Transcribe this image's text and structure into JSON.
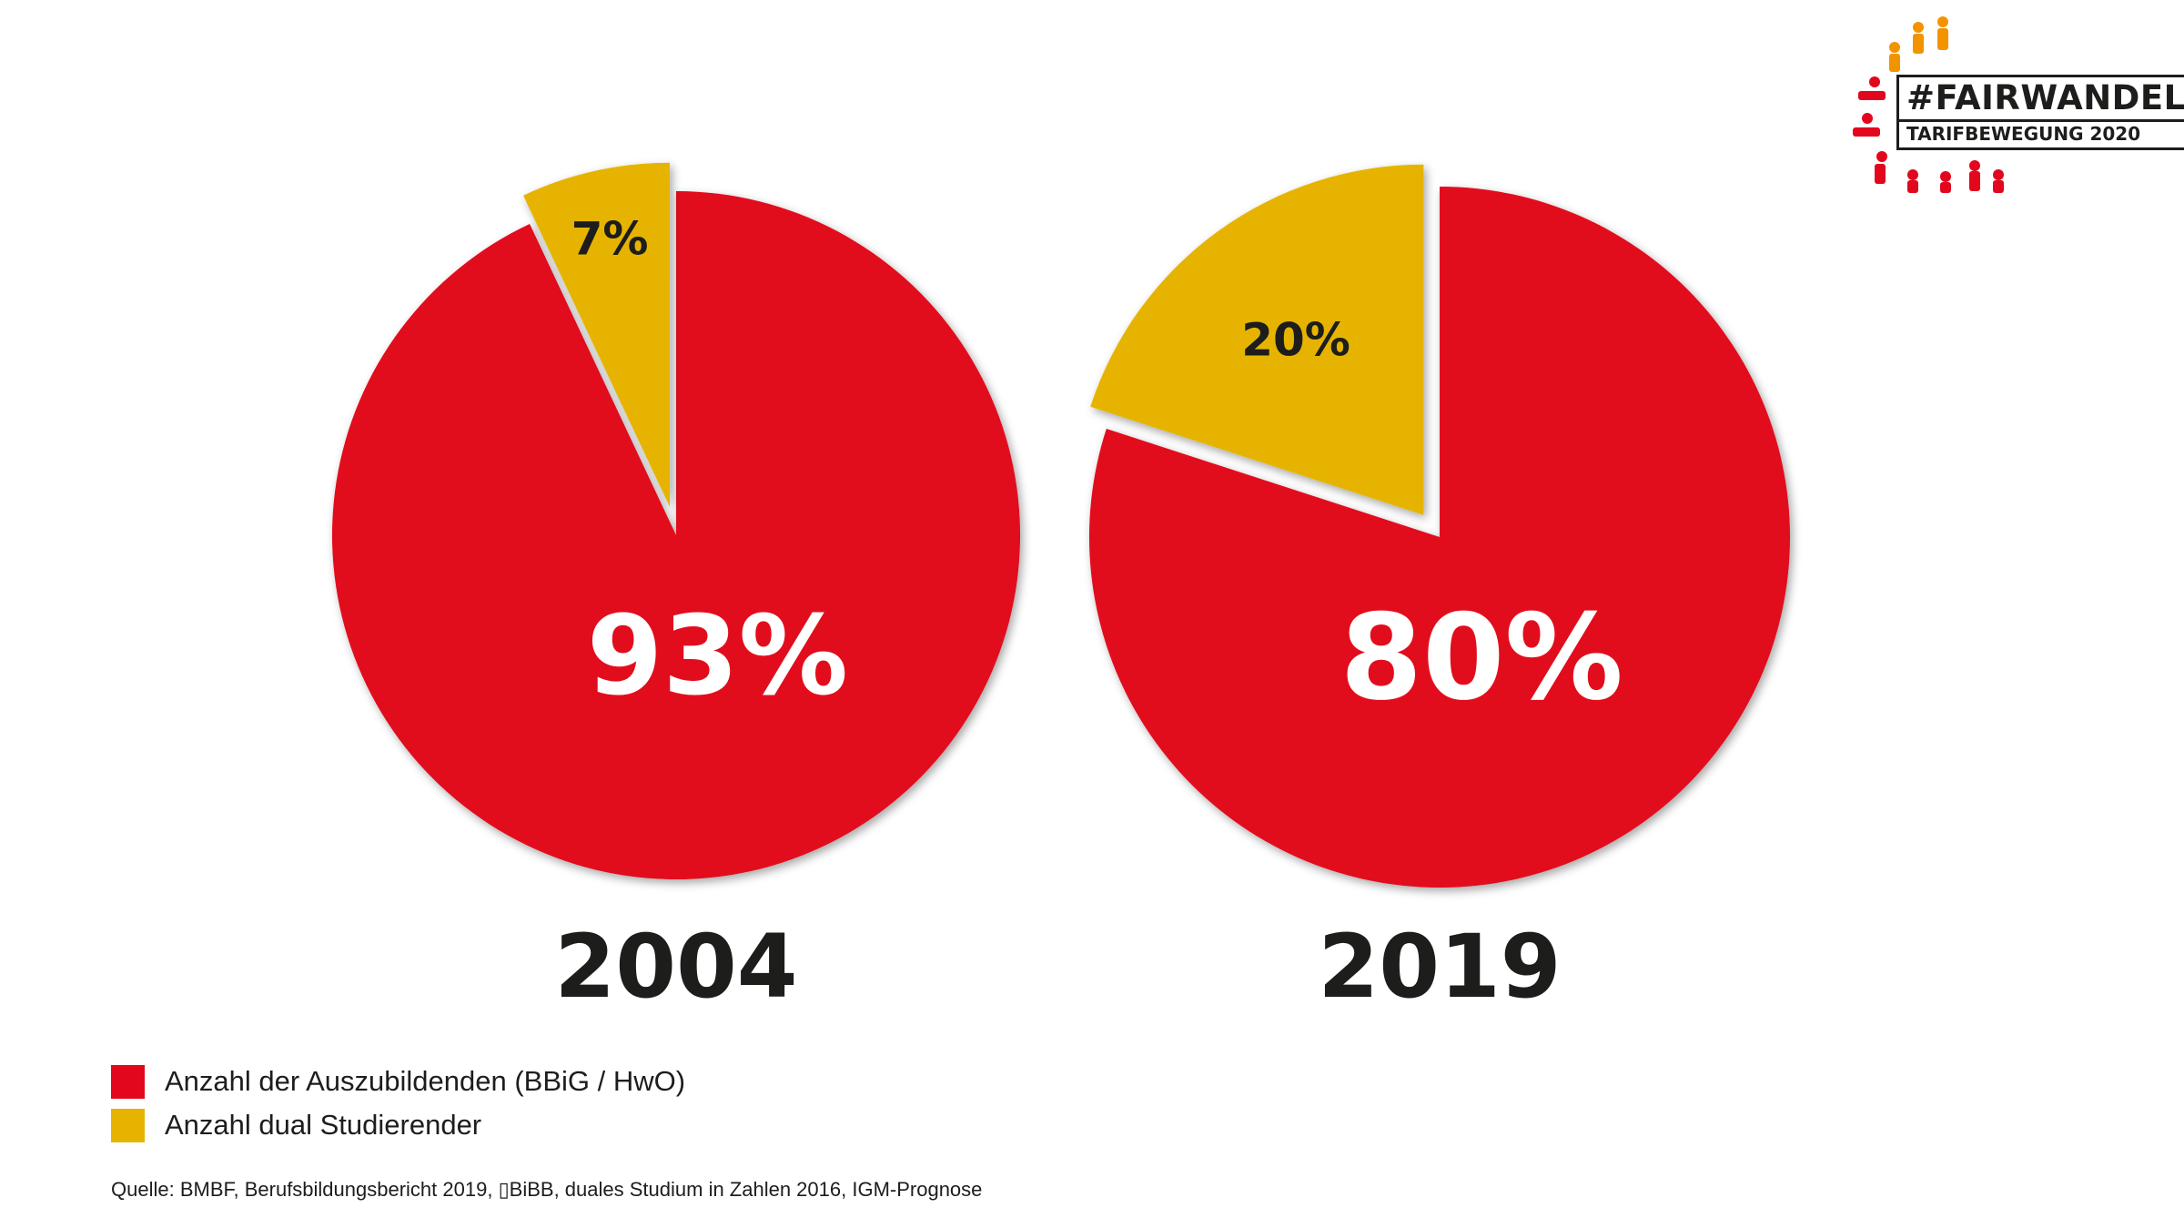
{
  "chart_data": [
    {
      "type": "pie",
      "year_label": "2004",
      "slices": [
        {
          "label": "Anzahl der Auszubildenden (BBiG / HwO)",
          "value": 93,
          "display": "93%",
          "color": "#e2071d",
          "exploded": false
        },
        {
          "label": "Anzahl dual Studierender",
          "value": 7,
          "display": "7%",
          "color": "#e6b400",
          "exploded": true
        }
      ]
    },
    {
      "type": "pie",
      "year_label": "2019",
      "slices": [
        {
          "label": "Anzahl der Auszubildenden (BBiG / HwO)",
          "value": 80,
          "display": "80%",
          "color": "#e2071d",
          "exploded": false
        },
        {
          "label": "Anzahl dual Studierender",
          "value": 20,
          "display": "20%",
          "color": "#e6b400",
          "exploded": true
        }
      ]
    }
  ],
  "legend": [
    {
      "label": "Anzahl der Auszubildenden (BBiG / HwO)",
      "color": "#e2071d"
    },
    {
      "label": "Anzahl dual Studierender",
      "color": "#e6b400"
    }
  ],
  "source": "Quelle: BMBF, Berufsbildungsbericht 2019, ▯BiBB, duales Studium in Zahlen 2016, IGM-Prognose",
  "logo": {
    "line1": "#FAIRWANDEL",
    "line2": "TARIFBEWEGUNG 2020"
  }
}
